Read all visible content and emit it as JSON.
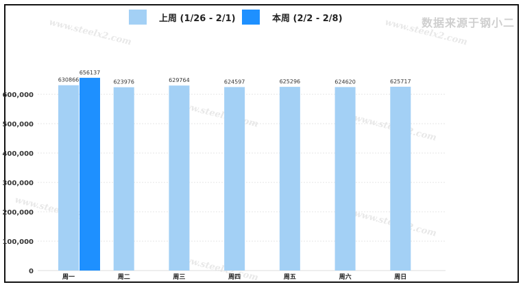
{
  "source_note": "数据来源于钢小二",
  "watermark_text": "www.steelx2.com",
  "colors": {
    "last_week": "#a3d0f5",
    "this_week": "#1e90ff",
    "grid": "#e6e6e6",
    "axis": "#dddddd"
  },
  "chart_data": {
    "type": "bar",
    "title": "",
    "xlabel": "",
    "ylabel": "",
    "categories": [
      "周一",
      "周二",
      "周三",
      "周四",
      "周五",
      "周六",
      "周日"
    ],
    "series": [
      {
        "name": "上周 (1/26 - 2/1)",
        "values": [
          630866,
          623976,
          629764,
          624597,
          625296,
          624620,
          625717
        ]
      },
      {
        "name": "本周 (2/2 - 2/8)",
        "values": [
          656137,
          null,
          null,
          null,
          null,
          null,
          null
        ]
      }
    ],
    "ylim": [
      0,
      700000
    ],
    "yticks": [
      0,
      100000,
      200000,
      300000,
      400000,
      500000,
      600000
    ],
    "ytick_labels": [
      "0",
      "100,000",
      "200,000",
      "300,000",
      "400,000",
      "500,000",
      "600,000"
    ],
    "grid": true,
    "legend_position": "top"
  }
}
